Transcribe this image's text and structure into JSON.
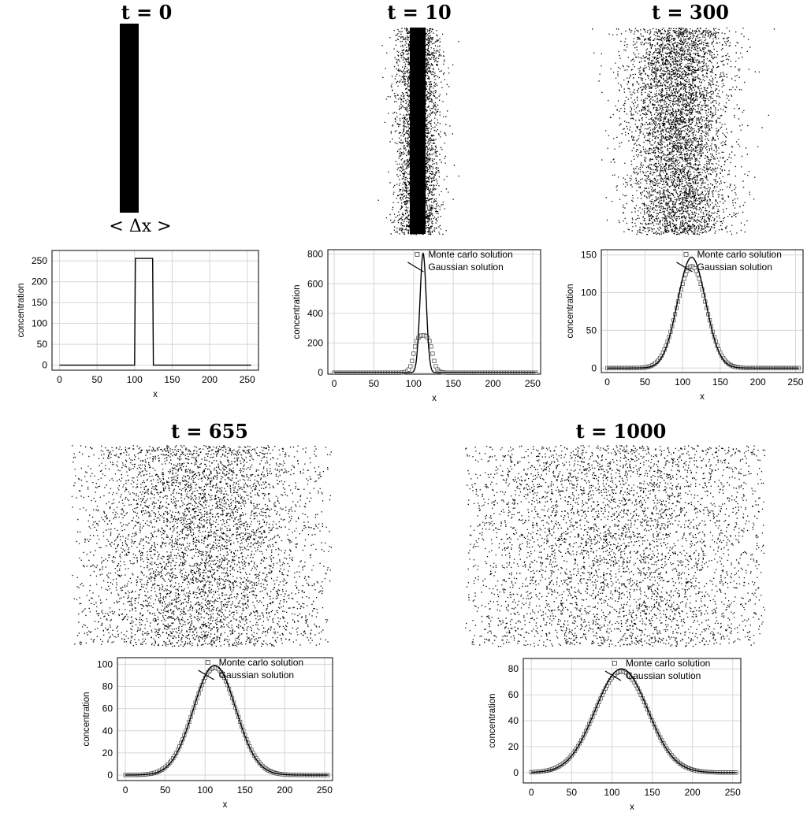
{
  "panels": [
    {
      "title": "t = 0",
      "particle_image": {
        "shape": "solid-strip"
      },
      "strip_label": "< Δx >",
      "chart_data": {
        "type": "line",
        "xlabel": "x",
        "ylabel": "concentration",
        "xlim": [
          -10,
          265
        ],
        "ylim": [
          -12,
          275
        ],
        "xticks": [
          "0",
          "50",
          "100",
          "150",
          "200",
          "250"
        ],
        "yticks": [
          "0",
          "50",
          "100",
          "150",
          "200",
          "250"
        ],
        "grid": true,
        "series": [
          {
            "kind": "line",
            "x": [
              0,
              100,
              101,
              124,
              125,
              255
            ],
            "y": [
              0,
              0,
              256,
              256,
              0,
              0
            ]
          }
        ]
      }
    },
    {
      "title": "t = 10",
      "particle_image": {
        "shape": "narrow-scatter",
        "spread": 0.07
      },
      "chart_data": {
        "type": "line",
        "xlabel": "x",
        "ylabel": "concentration",
        "xlim": [
          -8,
          260
        ],
        "ylim": [
          -10,
          830
        ],
        "xticks": [
          "0",
          "50",
          "100",
          "150",
          "200",
          "250"
        ],
        "yticks": [
          "0",
          "200",
          "400",
          "600",
          "800"
        ],
        "grid": true,
        "legend": {
          "position": "top-right",
          "entries": [
            "Monte carlo solution",
            "Gaussian solution"
          ]
        },
        "series": [
          {
            "name": "Monte carlo solution",
            "kind": "squares",
            "profile": "plateau",
            "center": 112,
            "amplitude": 256,
            "halfwidth": 12,
            "edge": 2.5
          },
          {
            "name": "Gaussian solution",
            "kind": "line",
            "profile": "gaussian",
            "center": 112,
            "amplitude": 805,
            "sigma": 4
          }
        ]
      }
    },
    {
      "title": "t = 300",
      "particle_image": {
        "shape": "wide-scatter",
        "spread": 0.2
      },
      "chart_data": {
        "type": "line",
        "xlabel": "x",
        "ylabel": "concentration",
        "xlim": [
          -8,
          260
        ],
        "ylim": [
          -6,
          157
        ],
        "xticks": [
          "0",
          "50",
          "100",
          "150",
          "200",
          "250"
        ],
        "yticks": [
          "0",
          "50",
          "100",
          "150"
        ],
        "grid": true,
        "legend": {
          "position": "top-right",
          "entries": [
            "Monte carlo solution",
            "Gaussian solution"
          ]
        },
        "series": [
          {
            "name": "Monte carlo solution",
            "kind": "squares",
            "profile": "gaussian",
            "center": 112,
            "amplitude": 135,
            "sigma": 19.5
          },
          {
            "name": "Gaussian solution",
            "kind": "line",
            "profile": "gaussian",
            "center": 112,
            "amplitude": 147,
            "sigma": 18.5
          }
        ]
      }
    },
    {
      "title": "t = 655",
      "particle_image": {
        "shape": "wide-scatter",
        "spread": 0.32
      },
      "chart_data": {
        "type": "line",
        "xlabel": "x",
        "ylabel": "concentration",
        "xlim": [
          -10,
          260
        ],
        "ylim": [
          -5,
          106
        ],
        "xticks": [
          "0",
          "50",
          "100",
          "150",
          "200",
          "250"
        ],
        "yticks": [
          "0",
          "20",
          "40",
          "60",
          "80",
          "100"
        ],
        "grid": true,
        "legend": {
          "position": "top-right",
          "entries": [
            "Monte carlo solution",
            "Gaussian solution"
          ]
        },
        "series": [
          {
            "name": "Monte carlo solution",
            "kind": "squares",
            "profile": "gaussian",
            "center": 112,
            "amplitude": 97,
            "sigma": 27
          },
          {
            "name": "Gaussian solution",
            "kind": "line",
            "profile": "gaussian",
            "center": 112,
            "amplitude": 99,
            "sigma": 26.5
          }
        ]
      }
    },
    {
      "title": "t = 1000",
      "particle_image": {
        "shape": "wide-scatter",
        "spread": 0.4
      },
      "chart_data": {
        "type": "line",
        "xlabel": "x",
        "ylabel": "concentration",
        "xlim": [
          -10,
          260
        ],
        "ylim": [
          -8,
          88
        ],
        "xticks": [
          "0",
          "50",
          "100",
          "150",
          "200",
          "250"
        ],
        "yticks": [
          "0",
          "20",
          "40",
          "60",
          "80"
        ],
        "grid": true,
        "legend": {
          "position": "top-right",
          "entries": [
            "Monte carlo solution",
            "Gaussian solution"
          ]
        },
        "series": [
          {
            "name": "Monte carlo solution",
            "kind": "squares",
            "profile": "gaussian",
            "center": 112,
            "amplitude": 78,
            "sigma": 33
          },
          {
            "name": "Gaussian solution",
            "kind": "line",
            "profile": "gaussian",
            "center": 112,
            "amplitude": 80,
            "sigma": 32.5
          }
        ]
      }
    }
  ]
}
